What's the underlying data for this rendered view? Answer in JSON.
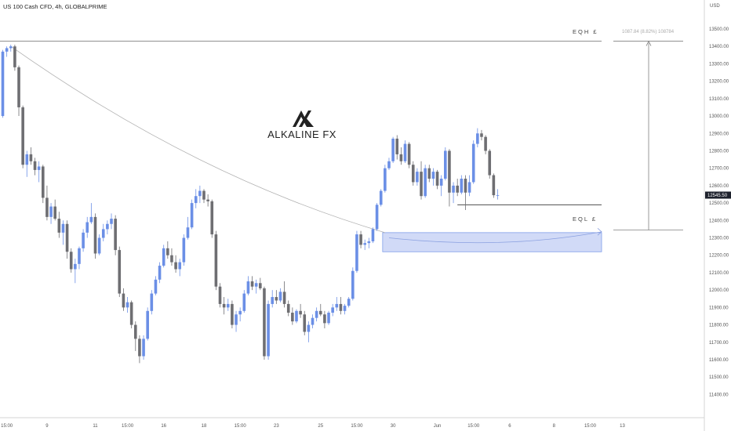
{
  "chart_data": {
    "type": "candlestick",
    "title": "US 100 Cash CFD, 4h, GLOBALPRIME",
    "currency": "USD",
    "ylim": [
      11400,
      13600
    ],
    "y_ticks": [
      13500,
      13400,
      13300,
      13200,
      13100,
      13000,
      12900,
      12800,
      12700,
      12600,
      12500,
      12400,
      12300,
      12200,
      12100,
      12000,
      11900,
      11800,
      11700,
      11600,
      11500,
      11400
    ],
    "y_tick_labels": [
      "13500.00",
      "13400.00",
      "13300.00",
      "13200.00",
      "13100.00",
      "13000.00",
      "12900.00",
      "12800.00",
      "12700.00",
      "12600.00",
      "12500.00",
      "12400.00",
      "12300.00",
      "12200.00",
      "12100.00",
      "12000.00",
      "11900.00",
      "11800.00",
      "11700.00",
      "11600.00",
      "11500.00",
      "11400.00"
    ],
    "x_ticks": [
      {
        "i": 1,
        "label": "15:00"
      },
      {
        "i": 11,
        "label": "9"
      },
      {
        "i": 23,
        "label": "11"
      },
      {
        "i": 31,
        "label": "15:00"
      },
      {
        "i": 40,
        "label": "16"
      },
      {
        "i": 50,
        "label": "18"
      },
      {
        "i": 59,
        "label": "15:00"
      },
      {
        "i": 68,
        "label": "23"
      },
      {
        "i": 79,
        "label": "25"
      },
      {
        "i": 88,
        "label": "15:00"
      },
      {
        "i": 97,
        "label": "30"
      },
      {
        "i": 108,
        "label": "Jun"
      },
      {
        "i": 117,
        "label": "15:00"
      },
      {
        "i": 126,
        "label": "6"
      },
      {
        "i": 137,
        "label": "8"
      },
      {
        "i": 146,
        "label": "15:00"
      },
      {
        "i": 154,
        "label": "13"
      }
    ],
    "last_price_label": "12545.50",
    "last_price": 12545.5,
    "candles": [
      [
        13000,
        13380,
        12990,
        13370
      ],
      [
        13370,
        13400,
        13340,
        13390
      ],
      [
        13390,
        13410,
        13370,
        13400
      ],
      [
        13400,
        13410,
        13260,
        13280
      ],
      [
        13280,
        13290,
        13000,
        13050
      ],
      [
        13050,
        13060,
        12700,
        12720
      ],
      [
        12720,
        12800,
        12650,
        12780
      ],
      [
        12780,
        12820,
        12720,
        12740
      ],
      [
        12740,
        12760,
        12660,
        12690
      ],
      [
        12690,
        12740,
        12620,
        12710
      ],
      [
        12710,
        12720,
        12500,
        12530
      ],
      [
        12530,
        12600,
        12400,
        12420
      ],
      [
        12420,
        12500,
        12380,
        12480
      ],
      [
        12480,
        12520,
        12400,
        12410
      ],
      [
        12410,
        12450,
        12300,
        12330
      ],
      [
        12330,
        12400,
        12260,
        12380
      ],
      [
        12380,
        12400,
        12180,
        12220
      ],
      [
        12220,
        12240,
        12100,
        12120
      ],
      [
        12120,
        12180,
        12040,
        12150
      ],
      [
        12150,
        12250,
        12120,
        12240
      ],
      [
        12240,
        12350,
        12220,
        12330
      ],
      [
        12330,
        12420,
        12300,
        12390
      ],
      [
        12390,
        12500,
        12380,
        12420
      ],
      [
        12420,
        12440,
        12180,
        12210
      ],
      [
        12210,
        12320,
        12200,
        12300
      ],
      [
        12300,
        12380,
        12280,
        12350
      ],
      [
        12350,
        12400,
        12320,
        12380
      ],
      [
        12380,
        12440,
        12350,
        12410
      ],
      [
        12410,
        12430,
        12200,
        12230
      ],
      [
        12230,
        12250,
        11960,
        11980
      ],
      [
        11980,
        12010,
        11880,
        11900
      ],
      [
        11900,
        11960,
        11870,
        11930
      ],
      [
        11930,
        11940,
        11780,
        11800
      ],
      [
        11800,
        11820,
        11650,
        11720
      ],
      [
        11720,
        11740,
        11580,
        11620
      ],
      [
        11620,
        11740,
        11600,
        11720
      ],
      [
        11720,
        11900,
        11710,
        11880
      ],
      [
        11880,
        12000,
        11860,
        11980
      ],
      [
        11980,
        12080,
        11970,
        12060
      ],
      [
        12060,
        12160,
        12040,
        12140
      ],
      [
        12140,
        12260,
        12130,
        12240
      ],
      [
        12240,
        12280,
        12180,
        12200
      ],
      [
        12200,
        12240,
        12140,
        12160
      ],
      [
        12160,
        12200,
        12100,
        12120
      ],
      [
        12120,
        12180,
        12080,
        12160
      ],
      [
        12160,
        12320,
        12140,
        12300
      ],
      [
        12300,
        12420,
        12290,
        12360
      ],
      [
        12360,
        12520,
        12350,
        12500
      ],
      [
        12500,
        12580,
        12470,
        12540
      ],
      [
        12540,
        12600,
        12500,
        12570
      ],
      [
        12570,
        12580,
        12500,
        12520
      ],
      [
        12520,
        12550,
        12480,
        12510
      ],
      [
        12510,
        12520,
        12300,
        12320
      ],
      [
        12320,
        12340,
        12000,
        12020
      ],
      [
        12020,
        12040,
        11900,
        11920
      ],
      [
        11920,
        11960,
        11860,
        11900
      ],
      [
        11900,
        11950,
        11880,
        11920
      ],
      [
        11920,
        11940,
        11780,
        11800
      ],
      [
        11800,
        11880,
        11760,
        11860
      ],
      [
        11860,
        11900,
        11820,
        11880
      ],
      [
        11880,
        12000,
        11870,
        11980
      ],
      [
        11980,
        12080,
        11970,
        12050
      ],
      [
        12050,
        12080,
        12000,
        12020
      ],
      [
        12020,
        12060,
        11980,
        12040
      ],
      [
        12040,
        12070,
        12000,
        12010
      ],
      [
        12010,
        12020,
        11600,
        11620
      ],
      [
        11620,
        11940,
        11600,
        11920
      ],
      [
        11920,
        12000,
        11900,
        11960
      ],
      [
        11960,
        12000,
        11920,
        11940
      ],
      [
        11940,
        12010,
        11930,
        11990
      ],
      [
        11990,
        12050,
        11900,
        11920
      ],
      [
        11920,
        11940,
        11850,
        11870
      ],
      [
        11870,
        11900,
        11800,
        11820
      ],
      [
        11820,
        11890,
        11810,
        11880
      ],
      [
        11880,
        11920,
        11840,
        11860
      ],
      [
        11860,
        11880,
        11740,
        11760
      ],
      [
        11760,
        11820,
        11700,
        11800
      ],
      [
        11800,
        11860,
        11780,
        11840
      ],
      [
        11840,
        11900,
        11820,
        11880
      ],
      [
        11880,
        11920,
        11850,
        11860
      ],
      [
        11860,
        11880,
        11780,
        11810
      ],
      [
        11810,
        11880,
        11800,
        11870
      ],
      [
        11870,
        11920,
        11850,
        11900
      ],
      [
        11900,
        11960,
        11880,
        11920
      ],
      [
        11920,
        11960,
        11860,
        11880
      ],
      [
        11880,
        11920,
        11860,
        11910
      ],
      [
        11910,
        11960,
        11900,
        11950
      ],
      [
        11950,
        12130,
        11940,
        12110
      ],
      [
        12110,
        12340,
        12100,
        12320
      ],
      [
        12320,
        12340,
        12240,
        12260
      ],
      [
        12260,
        12290,
        12230,
        12270
      ],
      [
        12270,
        12300,
        12240,
        12280
      ],
      [
        12280,
        12360,
        12270,
        12350
      ],
      [
        12350,
        12500,
        12340,
        12490
      ],
      [
        12490,
        12580,
        12480,
        12570
      ],
      [
        12570,
        12720,
        12560,
        12700
      ],
      [
        12700,
        12760,
        12690,
        12740
      ],
      [
        12740,
        12880,
        12730,
        12870
      ],
      [
        12870,
        12890,
        12750,
        12780
      ],
      [
        12780,
        12820,
        12720,
        12740
      ],
      [
        12740,
        12860,
        12730,
        12840
      ],
      [
        12840,
        12850,
        12700,
        12720
      ],
      [
        12720,
        12740,
        12600,
        12620
      ],
      [
        12620,
        12700,
        12600,
        12680
      ],
      [
        12680,
        12740,
        12520,
        12540
      ],
      [
        12540,
        12720,
        12530,
        12700
      ],
      [
        12700,
        12720,
        12620,
        12640
      ],
      [
        12640,
        12700,
        12600,
        12680
      ],
      [
        12680,
        12690,
        12580,
        12600
      ],
      [
        12600,
        12660,
        12540,
        12640
      ],
      [
        12640,
        12820,
        12630,
        12800
      ],
      [
        12800,
        12810,
        12480,
        12560
      ],
      [
        12560,
        12620,
        12500,
        12600
      ],
      [
        12600,
        12640,
        12540,
        12560
      ],
      [
        12560,
        12660,
        12550,
        12640
      ],
      [
        12640,
        12660,
        12460,
        12560
      ],
      [
        12560,
        12660,
        12540,
        12620
      ],
      [
        12620,
        12860,
        12610,
        12840
      ],
      [
        12840,
        12930,
        12820,
        12900
      ],
      [
        12900,
        12920,
        12860,
        12880
      ],
      [
        12880,
        12890,
        12780,
        12800
      ],
      [
        12800,
        12810,
        12640,
        12660
      ],
      [
        12660,
        12670,
        12530,
        12545
      ],
      [
        12545,
        12580,
        12520,
        12545.5
      ]
    ]
  },
  "annotations": {
    "eqh_label": "EQH £",
    "eql_label": "EQL £",
    "eqh_price": 13430,
    "eql_price": 12490,
    "range_label": "1087.84 (8.82%) 108784",
    "zone_top": 12330,
    "zone_bottom": 12220,
    "brand": "ALKALINE FX"
  },
  "colors": {
    "bull": "#6b8fe6",
    "bear": "#6e6e72",
    "zone_fill": "#c9d4f6",
    "zone_stroke": "#6b8fe6",
    "line": "#808080",
    "axis": "#555555"
  }
}
